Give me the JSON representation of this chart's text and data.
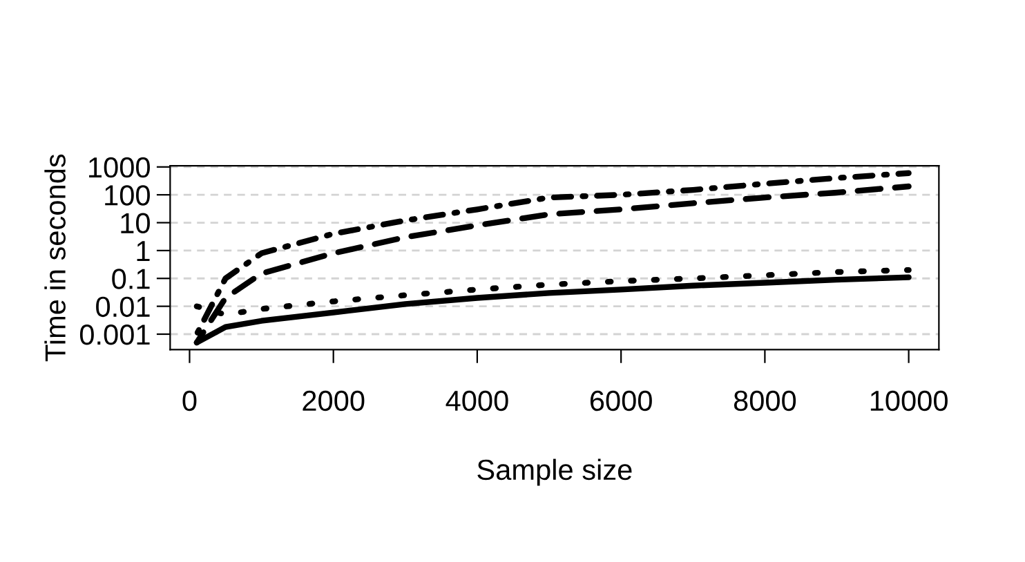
{
  "chart_data": {
    "type": "line",
    "xlabel": "Sample size",
    "ylabel": "Time in seconds",
    "log": "y",
    "x": [
      100,
      500,
      1000,
      2000,
      3000,
      4000,
      5000,
      6000,
      7000,
      8000,
      9000,
      10000
    ],
    "xlim": [
      -270,
      10420
    ],
    "xticks": [
      0,
      2000,
      4000,
      6000,
      8000,
      10000
    ],
    "ylim": [
      0.00028,
      1100
    ],
    "yticks": [
      {
        "value": 0.001,
        "label": "0.001"
      },
      {
        "value": 0.01,
        "label": "0.01"
      },
      {
        "value": 0.1,
        "label": "0.1"
      },
      {
        "value": 1,
        "label": "1"
      },
      {
        "value": 10,
        "label": "10"
      },
      {
        "value": 100,
        "label": "100"
      },
      {
        "value": 1000,
        "label": "1000"
      }
    ],
    "grid": "y",
    "marker": "none",
    "series": [
      {
        "color": "#000000",
        "line_style": "solid",
        "values": [
          0.0005,
          0.0018,
          0.003,
          0.006,
          0.012,
          0.02,
          0.03,
          0.04,
          0.055,
          0.07,
          0.09,
          0.11
        ]
      },
      {
        "color": "#000000",
        "line_style": "dotted",
        "values": [
          0.01,
          0.005,
          0.008,
          0.015,
          0.025,
          0.04,
          0.06,
          0.08,
          0.1,
          0.13,
          0.17,
          0.2
        ]
      },
      {
        "color": "#000000",
        "line_style": "dashed",
        "values": [
          0.0005,
          0.02,
          0.15,
          0.8,
          3,
          8,
          20,
          30,
          50,
          80,
          120,
          200
        ]
      },
      {
        "color": "#000000",
        "line_style": "dashdot",
        "values": [
          0.001,
          0.1,
          0.8,
          4,
          12,
          30,
          80,
          100,
          150,
          250,
          400,
          600
        ]
      }
    ]
  }
}
